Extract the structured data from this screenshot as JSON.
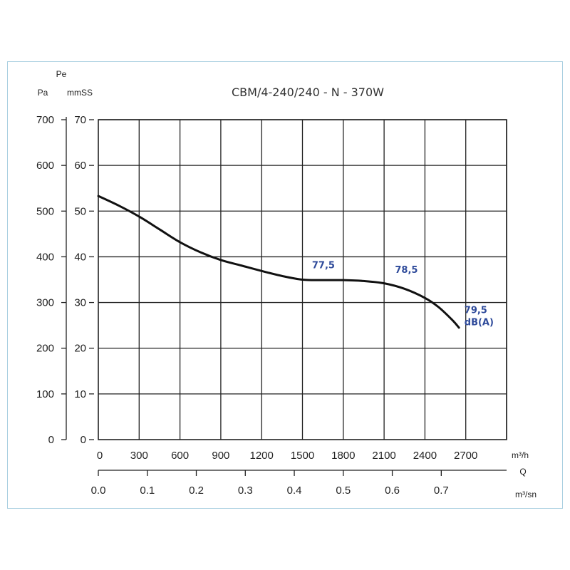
{
  "chart_data": {
    "type": "line",
    "title": "CBM/4-240/240 - N - 370W",
    "y_left": {
      "label": "Pa",
      "ticks": [
        "0",
        "100",
        "200",
        "300",
        "400",
        "500",
        "600",
        "700"
      ],
      "range": [
        0,
        700
      ]
    },
    "y_right": {
      "label_top": "Pe",
      "label_bottom": "mmSS",
      "ticks": [
        "0",
        "10",
        "20",
        "30",
        "40",
        "50",
        "60",
        "70"
      ],
      "range": [
        0,
        70
      ]
    },
    "x_top": {
      "label": "m³/h",
      "ticks": [
        "0",
        "300",
        "600",
        "900",
        "1200",
        "1500",
        "1800",
        "2100",
        "2400",
        "2700"
      ],
      "range": [
        0,
        3000
      ]
    },
    "x_bottom": {
      "label_top": "Q",
      "label_bottom": "m³/sn",
      "ticks": [
        "0.0",
        "0.1",
        "0.2",
        "0.3",
        "0.4",
        "0.5",
        "0.6",
        "0.7"
      ]
    },
    "grid": true,
    "series": [
      {
        "x": [
          0,
          150,
          300,
          450,
          600,
          750,
          900,
          1050,
          1200,
          1350,
          1500,
          1650,
          1800,
          1950,
          2100,
          2250,
          2400,
          2500,
          2600,
          2650
        ],
        "y": [
          533,
          512,
          488,
          460,
          432,
          410,
          393,
          381,
          369,
          358,
          350,
          349,
          349,
          347,
          342,
          330,
          310,
          290,
          262,
          245
        ]
      }
    ],
    "annotations": [
      {
        "text": "77,5",
        "x": 1570,
        "y": 375
      },
      {
        "text": "78,5",
        "x": 2180,
        "y": 365
      },
      {
        "text": "79,5",
        "x": 2690,
        "y": 277
      },
      {
        "text": "dB(A)",
        "x": 2690,
        "y": 250
      }
    ],
    "colors": {
      "curve": "#111111",
      "annotation": "#2e4a9a",
      "grid": "#222222",
      "frame": "#a9cfe0"
    }
  }
}
